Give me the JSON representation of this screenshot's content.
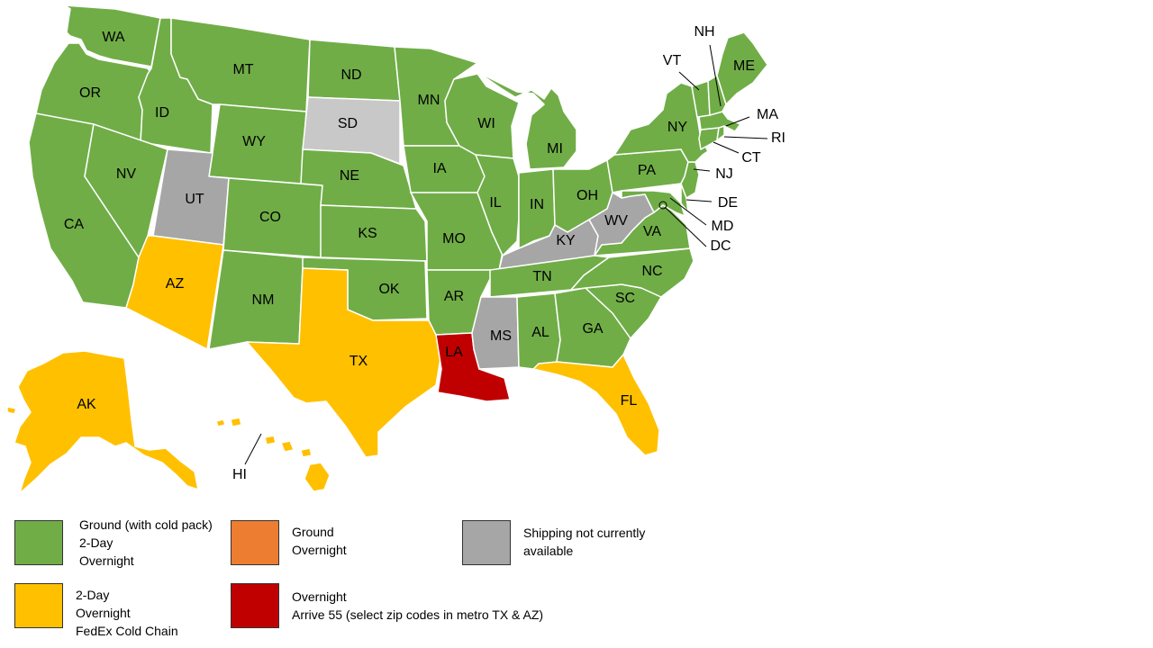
{
  "colors": {
    "green": "#70ad47",
    "yellow": "#ffc000",
    "orange": "#ed7d31",
    "red": "#c00000",
    "gray": "#a6a6a6",
    "lightgray": "#c8c8c8"
  },
  "legend": [
    {
      "color": "#70ad47",
      "lines": [
        "Ground (with cold pack)",
        "2-Day",
        "Overnight"
      ]
    },
    {
      "color": "#ed7d31",
      "lines": [
        "Ground",
        "Overnight"
      ]
    },
    {
      "color": "#a6a6a6",
      "lines": [
        "Shipping not currently",
        "available"
      ]
    },
    {
      "color": "#ffc000",
      "lines": [
        "2-Day",
        "Overnight",
        "FedEx Cold Chain"
      ]
    },
    {
      "color": "#c00000",
      "lines": [
        "Overnight",
        "Arrive 55 (select zip codes in metro TX & AZ)"
      ]
    }
  ],
  "states": {
    "WA": "WA",
    "OR": "OR",
    "CA": "CA",
    "ID": "ID",
    "NV": "NV",
    "MT": "MT",
    "WY": "WY",
    "UT": "UT",
    "AZ": "AZ",
    "CO": "CO",
    "NM": "NM",
    "ND": "ND",
    "SD": "SD",
    "NE": "NE",
    "KS": "KS",
    "OK": "OK",
    "TX": "TX",
    "MN": "MN",
    "IA": "IA",
    "MO": "MO",
    "AR": "AR",
    "LA": "LA",
    "WI": "WI",
    "IL": "IL",
    "MS": "MS",
    "MI": "MI",
    "IN": "IN",
    "KY": "KY",
    "TN": "TN",
    "AL": "AL",
    "OH": "OH",
    "WV": "WV",
    "GA": "GA",
    "FL": "FL",
    "SC": "SC",
    "NC": "NC",
    "VA": "VA",
    "PA": "PA",
    "NY": "NY",
    "VT": "VT",
    "NH": "NH",
    "ME": "ME",
    "MA": "MA",
    "RI": "RI",
    "CT": "CT",
    "NJ": "NJ",
    "DE": "DE",
    "MD": "MD",
    "DC": "DC",
    "AK": "AK",
    "HI": "HI"
  }
}
